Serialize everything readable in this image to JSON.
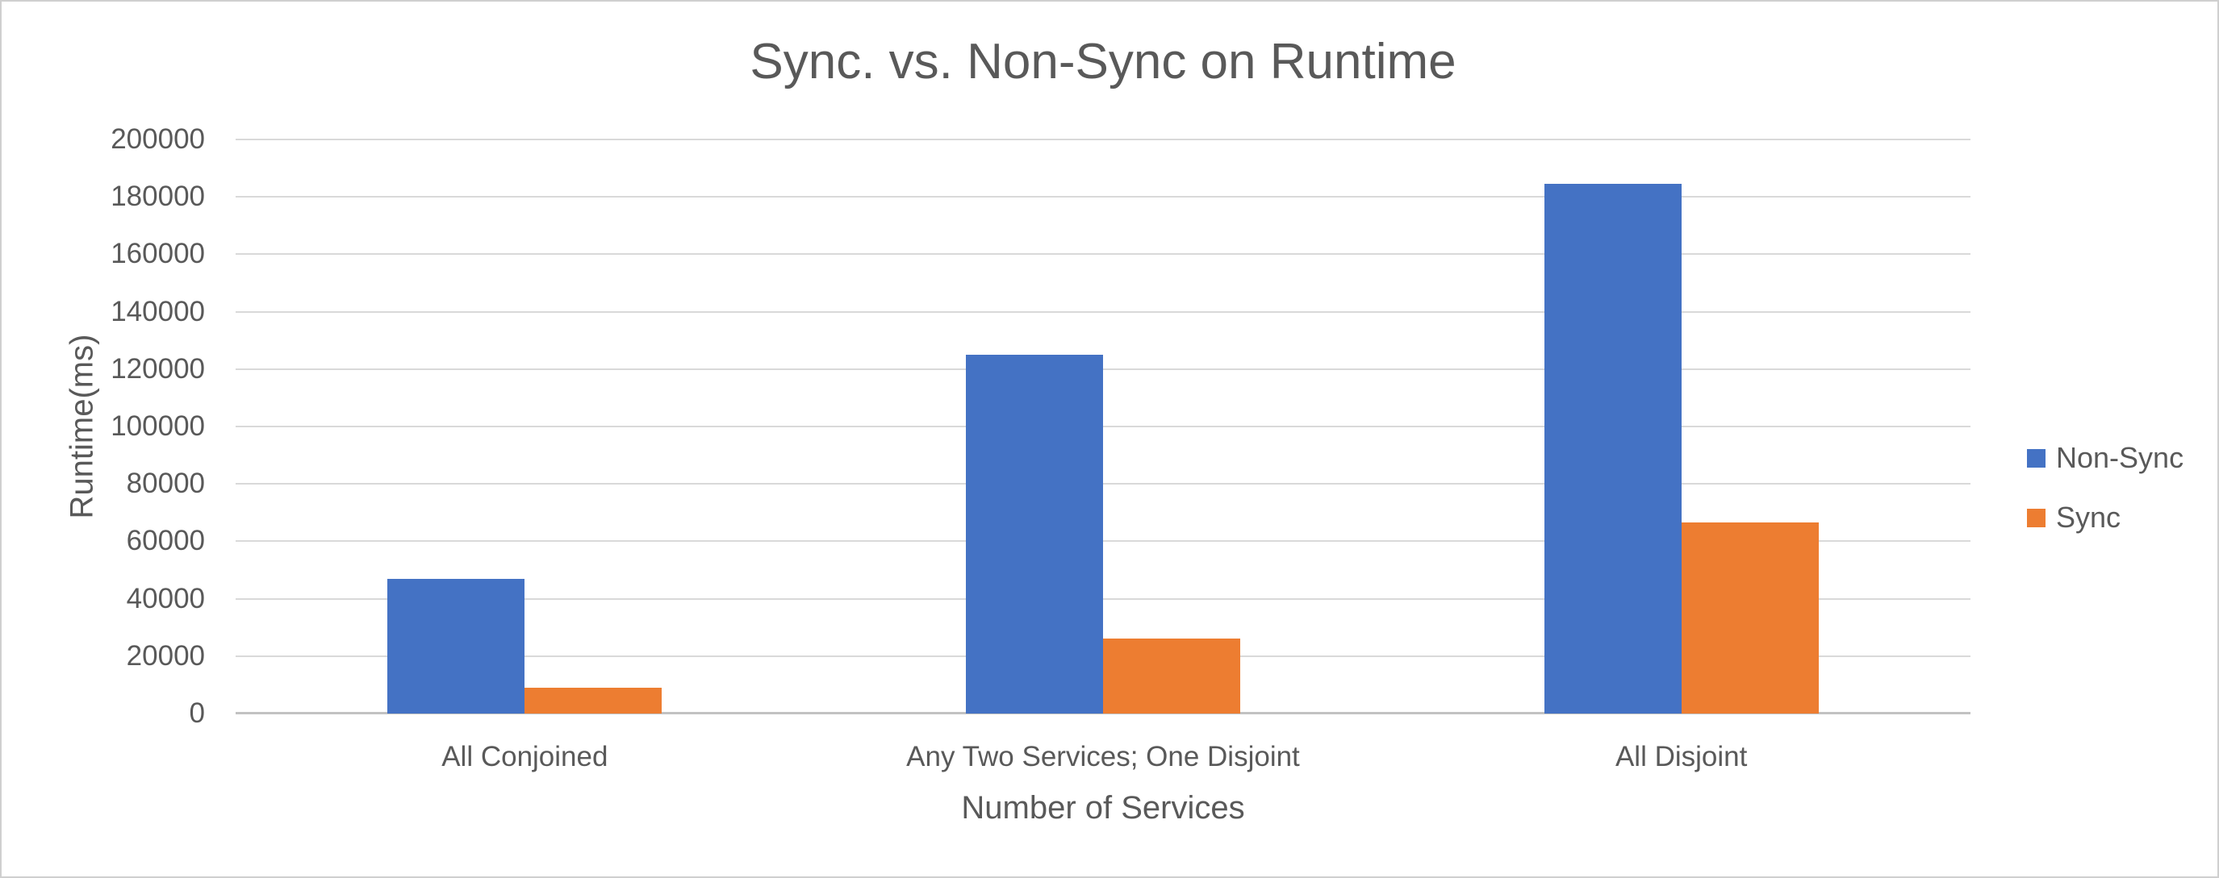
{
  "chart_data": {
    "type": "bar",
    "title": "Sync. vs. Non-Sync on Runtime",
    "xlabel": "Number of Services",
    "ylabel": "Runtime(ms)",
    "categories": [
      "All Conjoined",
      "Any Two Services; One Disjoint",
      "All Disjoint"
    ],
    "series": [
      {
        "name": "Non-Sync",
        "color": "#4472C4",
        "values": [
          47000,
          125000,
          184500
        ]
      },
      {
        "name": "Sync",
        "color": "#ED7D31",
        "values": [
          9000,
          26000,
          66500
        ]
      }
    ],
    "ylim": [
      0,
      200000
    ],
    "ytick_step": 20000,
    "yticks": [
      0,
      20000,
      40000,
      60000,
      80000,
      100000,
      120000,
      140000,
      160000,
      180000,
      200000
    ],
    "grid": "horizontal",
    "legend_position": "right",
    "bar_orientation": "vertical"
  },
  "colors": {
    "text": "#595959",
    "gridline": "#D9D9D9",
    "axis_line": "#C2C2C2",
    "background": "#FFFFFF",
    "border": "#CFCFCF"
  }
}
